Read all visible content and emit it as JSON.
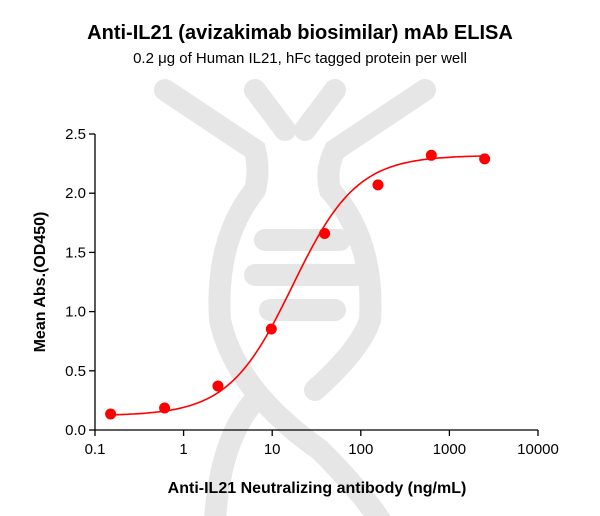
{
  "title": "Anti-IL21 (avizakimab biosimilar) mAb ELISA",
  "subtitle": "0.2 μg of Human IL21, hFc tagged protein per well",
  "colors": {
    "series": "#ff0000",
    "watermark": "#e6e6e6",
    "axis": "#000000"
  },
  "chart_data": {
    "type": "scatter",
    "title": "Anti-IL21 (avizakimab biosimilar) mAb ELISA",
    "subtitle": "0.2 μg of Human IL21, hFc tagged protein per well",
    "xlabel": "Anti-IL21 Neutralizing antibody (ng/mL)",
    "ylabel": "Mean Abs.(OD450)",
    "xscale": "log",
    "xlim": [
      0.1,
      10000
    ],
    "ylim": [
      0.0,
      2.5
    ],
    "xticks": [
      "0.1",
      "1",
      "10",
      "100",
      "1000",
      "10000"
    ],
    "yticks": [
      "0.0",
      "0.5",
      "1.0",
      "1.5",
      "2.0",
      "2.5"
    ],
    "grid": false,
    "legend": null,
    "fit": "4-parameter logistic curve",
    "series": [
      {
        "name": "Anti-IL21 (avizakimab biosimilar)",
        "x": [
          0.15,
          0.61,
          2.44,
          9.77,
          39.06,
          156.25,
          625,
          2500
        ],
        "y": [
          0.135,
          0.186,
          0.372,
          0.853,
          1.66,
          2.07,
          2.32,
          2.29
        ]
      }
    ],
    "fit_params": {
      "bottom": 0.12,
      "top": 2.32,
      "ec50": 17,
      "hill": 1.2
    }
  }
}
